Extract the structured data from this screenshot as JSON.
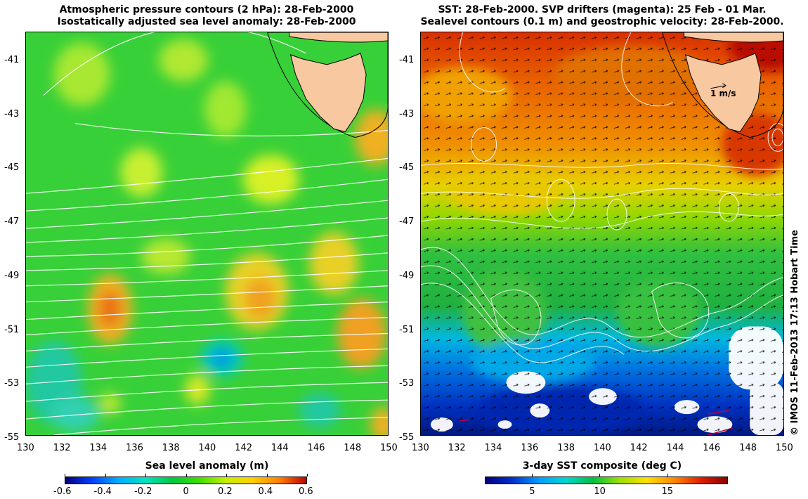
{
  "left_panel": {
    "title_line1": "Atmospheric pressure contours (2 hPa): 28-Feb-2000",
    "title_line2": "Isostatically adjusted sea level anomaly: 28-Feb-2000",
    "y_ticks": [
      "-41",
      "-43",
      "-45",
      "-47",
      "-49",
      "-51",
      "-53",
      "-55"
    ],
    "x_ticks": [
      "130",
      "132",
      "134",
      "136",
      "138",
      "140",
      "142",
      "144",
      "146",
      "148",
      "150"
    ],
    "colorbar": {
      "label": "Sea level anomaly (m)",
      "ticks": [
        "-0.6",
        "-0.4",
        "-0.2",
        "0",
        "0.2",
        "0.4",
        "0.6"
      ],
      "range": [
        -0.6,
        0.6
      ]
    }
  },
  "right_panel": {
    "title_line1": "SST: 28-Feb-2000. SVP drifters (magenta): 25 Feb - 01 Mar.",
    "title_line2": "Sealevel contours (0.1 m) and geostrophic velocity: 28-Feb-2000.",
    "y_ticks": [
      "-41",
      "-43",
      "-45",
      "-47",
      "-49",
      "-51",
      "-53",
      "-55"
    ],
    "x_ticks": [
      "130",
      "132",
      "134",
      "136",
      "138",
      "140",
      "142",
      "144",
      "146",
      "148",
      "150"
    ],
    "vector_scale_label": "1 m/s",
    "colorbar": {
      "label": "3-day SST composite (deg C)",
      "ticks": [
        "5",
        "10",
        "15"
      ],
      "range": [
        1.5,
        19.5
      ]
    }
  },
  "credit": "© IMOS 11-Feb-2013 17:13 Hobart Time",
  "map_extent": {
    "lon": [
      130,
      150
    ],
    "lat": [
      -55,
      -40
    ]
  },
  "colors": {
    "land": "#f8c8a0",
    "left_base": "#38d038",
    "right_warm": "#e88000",
    "right_cold": "#0040c0"
  }
}
